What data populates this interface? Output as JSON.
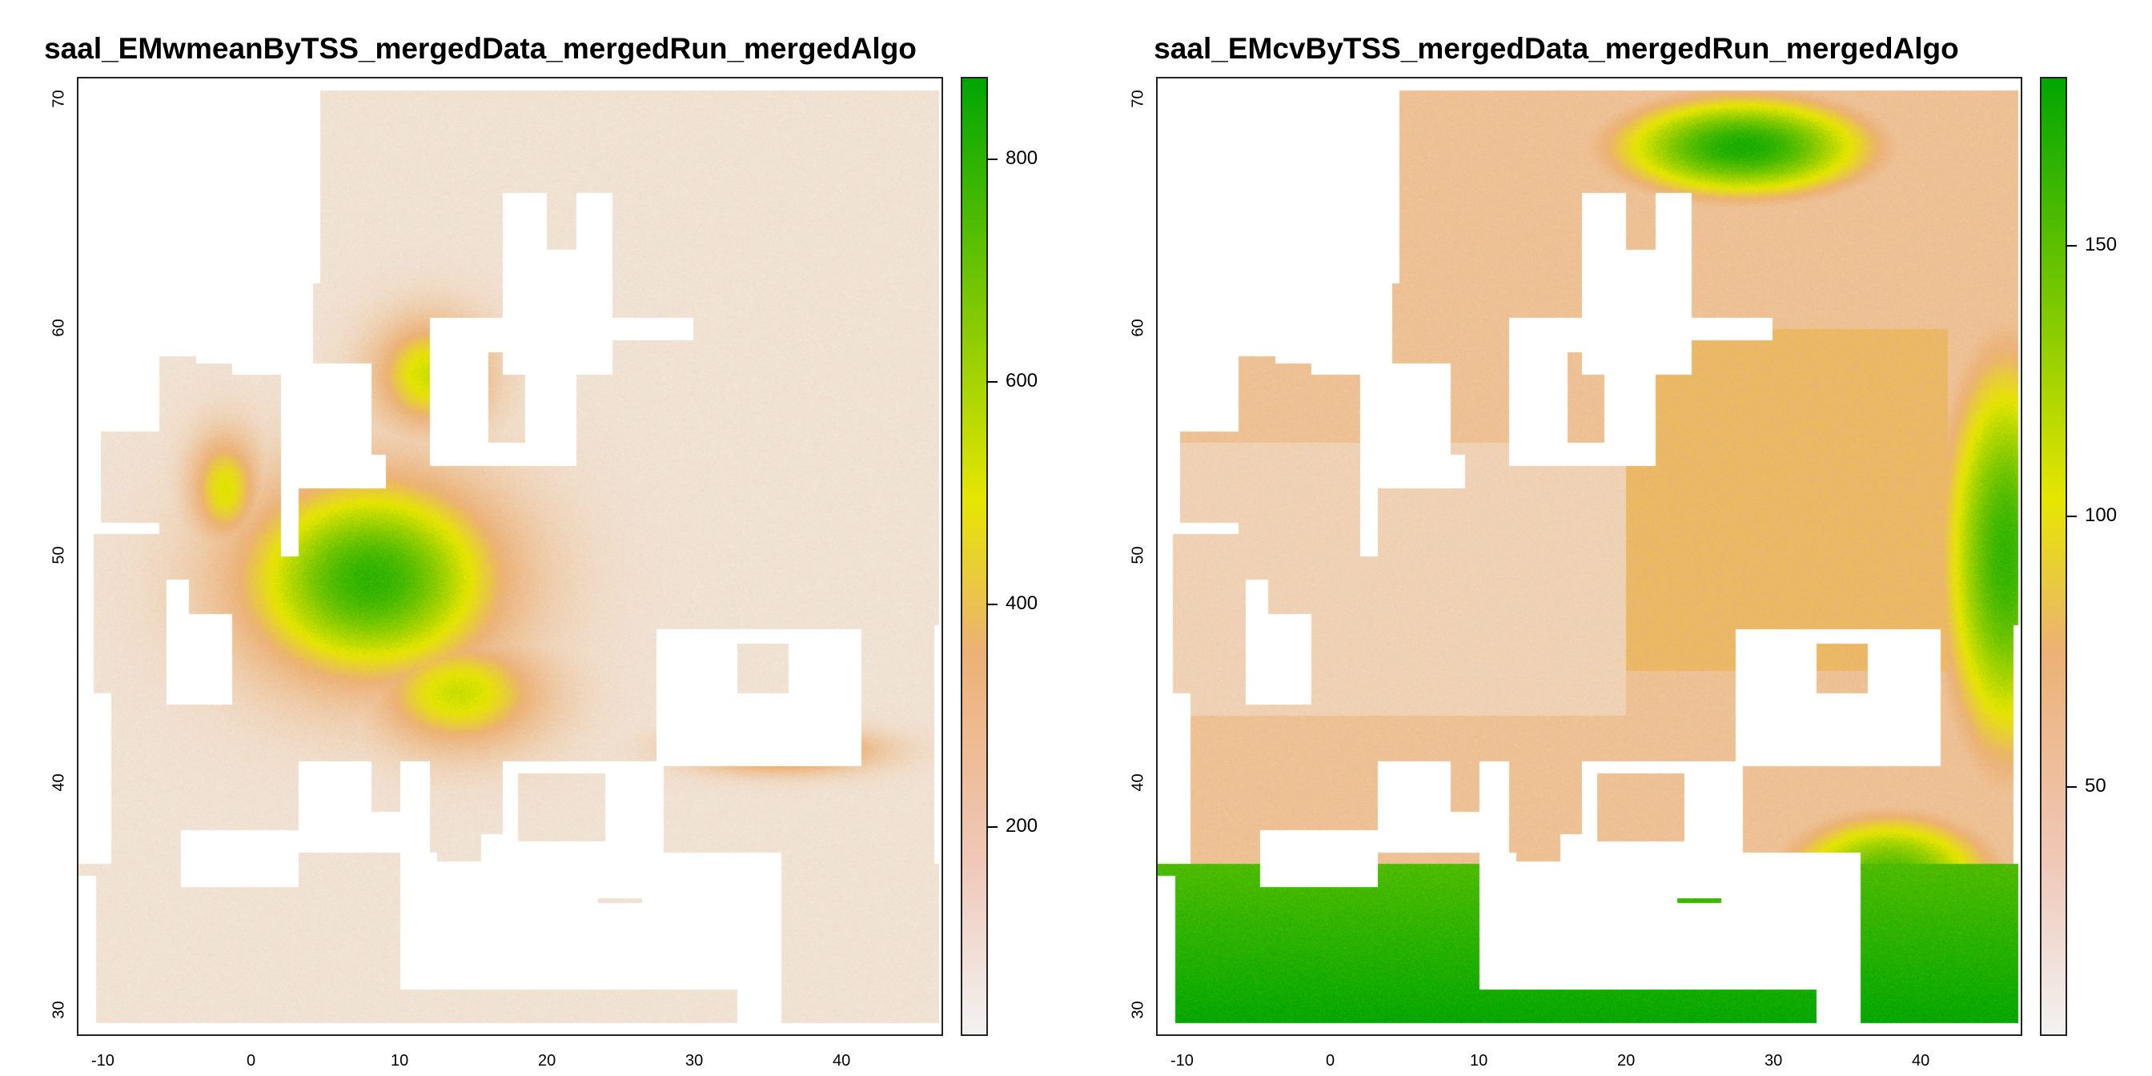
{
  "panels": [
    {
      "title": "saal_EMwmeanByTSS_mergedData_mergedRun_mergedAlgo",
      "x_ticks": [
        "-10",
        "0",
        "10",
        "20",
        "30",
        "40"
      ],
      "y_ticks": [
        "30",
        "40",
        "50",
        "60",
        "70"
      ],
      "legend": {
        "min": 0,
        "max": 870,
        "ticks": [
          200,
          400,
          600,
          800
        ],
        "labels": [
          "200",
          "400",
          "600",
          "800"
        ]
      }
    },
    {
      "title": "saal_EMcvByTSS_mergedData_mergedRun_mergedAlgo",
      "x_ticks": [
        "-10",
        "0",
        "10",
        "20",
        "30",
        "40"
      ],
      "y_ticks": [
        "30",
        "40",
        "50",
        "60",
        "70"
      ],
      "legend": {
        "min": 0,
        "max": 185,
        "ticks": [
          50,
          100,
          150
        ],
        "labels": [
          "50",
          "100",
          "150"
        ]
      }
    }
  ],
  "chart_data": [
    {
      "type": "heatmap",
      "title": "saal_EMwmeanByTSS_mergedData_mergedRun_mergedAlgo",
      "xlim": [
        -12,
        47
      ],
      "ylim": [
        29,
        71
      ],
      "x_ticks": [
        -10,
        0,
        10,
        20,
        30,
        40
      ],
      "y_ticks": [
        30,
        40,
        50,
        60,
        70
      ],
      "colorscale": [
        "#f2f2f2",
        "#ecb176",
        "#e6e600",
        "#00a600"
      ],
      "value_range": [
        0,
        870
      ],
      "colorbar_ticks": [
        200,
        400,
        600,
        800
      ]
    },
    {
      "type": "heatmap",
      "title": "saal_EMcvByTSS_mergedData_mergedRun_mergedAlgo",
      "xlim": [
        -12,
        47
      ],
      "ylim": [
        29,
        71
      ],
      "x_ticks": [
        -10,
        0,
        10,
        20,
        30,
        40
      ],
      "y_ticks": [
        30,
        40,
        50,
        60,
        70
      ],
      "colorscale": [
        "#f2f2f2",
        "#ecb176",
        "#e6e600",
        "#00a600"
      ],
      "value_range": [
        0,
        185
      ],
      "colorbar_ticks": [
        50,
        100,
        150
      ]
    }
  ]
}
